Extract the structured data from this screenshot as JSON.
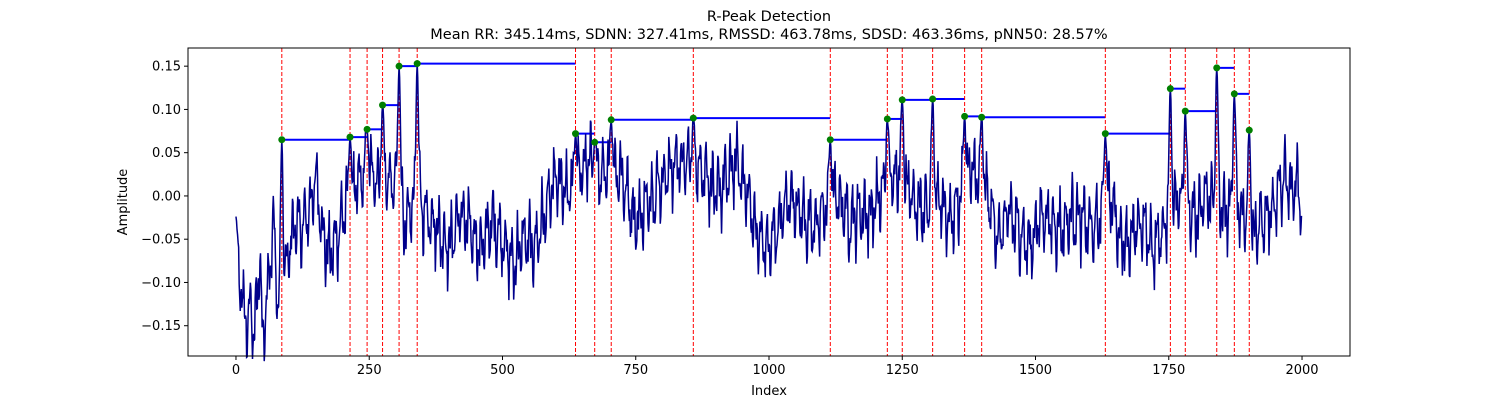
{
  "chart_data": {
    "type": "line",
    "title": "R-Peak Detection",
    "subtitle": "Mean RR: 345.14ms, SDNN: 327.41ms, RMSSD: 463.78ms, SDSD: 463.36ms, pNN50: 28.57%",
    "xlabel": "Index",
    "ylabel": "Amplitude",
    "xlim": [
      -90,
      2090
    ],
    "ylim": [
      -0.185,
      0.171
    ],
    "x_ticks": [
      0,
      250,
      500,
      750,
      1000,
      1250,
      1500,
      1750,
      2000
    ],
    "y_ticks": [
      -0.15,
      -0.1,
      -0.05,
      0.0,
      0.05,
      0.1,
      0.15
    ],
    "grid": false,
    "colors": {
      "signal": "#00008b",
      "peak_line": "#ff0000",
      "peak_marker": "#008000",
      "interval": "#0000ff"
    },
    "signal": {
      "n_points": 2000,
      "anchors": [
        [
          0,
          -0.04
        ],
        [
          5,
          -0.09
        ],
        [
          12,
          -0.12
        ],
        [
          20,
          -0.15
        ],
        [
          28,
          -0.13
        ],
        [
          35,
          -0.16
        ],
        [
          45,
          -0.07
        ],
        [
          50,
          -0.17
        ],
        [
          60,
          -0.1
        ],
        [
          70,
          -0.03
        ],
        [
          78,
          -0.12
        ],
        [
          85,
          -0.16
        ],
        [
          95,
          -0.08
        ],
        [
          110,
          -0.03
        ],
        [
          120,
          -0.04
        ],
        [
          130,
          -0.03
        ],
        [
          140,
          -0.01
        ],
        [
          150,
          0.02
        ],
        [
          165,
          -0.05
        ],
        [
          175,
          -0.07
        ],
        [
          190,
          -0.05
        ],
        [
          200,
          -0.02
        ],
        [
          245,
          0.03
        ],
        [
          260,
          0.02
        ],
        [
          280,
          0.02
        ],
        [
          300,
          0.01
        ],
        [
          320,
          -0.04
        ],
        [
          330,
          -0.01
        ],
        [
          360,
          -0.02
        ],
        [
          380,
          -0.04
        ],
        [
          400,
          -0.06
        ],
        [
          420,
          -0.02
        ],
        [
          440,
          -0.04
        ],
        [
          460,
          -0.06
        ],
        [
          480,
          -0.03
        ],
        [
          500,
          -0.05
        ],
        [
          520,
          -0.08
        ],
        [
          540,
          -0.05
        ],
        [
          560,
          -0.06
        ],
        [
          600,
          0.02
        ],
        [
          620,
          0.0
        ],
        [
          660,
          0.04
        ],
        [
          690,
          0.02
        ],
        [
          720,
          0.03
        ],
        [
          750,
          -0.03
        ],
        [
          780,
          0.0
        ],
        [
          800,
          0.02
        ],
        [
          830,
          0.04
        ],
        [
          880,
          0.03
        ],
        [
          900,
          0.0
        ],
        [
          920,
          0.02
        ],
        [
          940,
          0.04
        ],
        [
          960,
          0.0
        ],
        [
          980,
          -0.05
        ],
        [
          1000,
          -0.06
        ],
        [
          1020,
          -0.03
        ],
        [
          1040,
          0.0
        ],
        [
          1060,
          -0.02
        ],
        [
          1080,
          -0.04
        ],
        [
          1100,
          -0.02
        ],
        [
          1130,
          0.0
        ],
        [
          1150,
          -0.03
        ],
        [
          1170,
          -0.02
        ],
        [
          1190,
          -0.02
        ],
        [
          1210,
          0.0
        ],
        [
          1240,
          0.03
        ],
        [
          1270,
          0.0
        ],
        [
          1290,
          -0.02
        ],
        [
          1320,
          0.0
        ],
        [
          1340,
          -0.03
        ],
        [
          1380,
          0.03
        ],
        [
          1410,
          0.0
        ],
        [
          1430,
          -0.05
        ],
        [
          1450,
          -0.02
        ],
        [
          1470,
          -0.04
        ],
        [
          1490,
          -0.06
        ],
        [
          1510,
          -0.02
        ],
        [
          1530,
          -0.03
        ],
        [
          1550,
          -0.04
        ],
        [
          1570,
          -0.02
        ],
        [
          1590,
          -0.03
        ],
        [
          1610,
          -0.04
        ],
        [
          1640,
          0.0
        ],
        [
          1660,
          -0.05
        ],
        [
          1680,
          -0.05
        ],
        [
          1700,
          -0.03
        ],
        [
          1720,
          -0.06
        ],
        [
          1740,
          -0.04
        ],
        [
          1770,
          0.0
        ],
        [
          1800,
          -0.03
        ],
        [
          1820,
          0.0
        ],
        [
          1855,
          -0.02
        ],
        [
          1880,
          -0.01
        ],
        [
          1910,
          -0.05
        ],
        [
          1920,
          -0.03
        ],
        [
          1940,
          -0.02
        ],
        [
          1960,
          0.01
        ],
        [
          1970,
          0.02
        ],
        [
          1980,
          0.0
        ],
        [
          1990,
          0.02
        ],
        [
          1999,
          -0.01
        ]
      ]
    },
    "r_peaks": [
      {
        "x": 86,
        "y": 0.065
      },
      {
        "x": 214,
        "y": 0.068
      },
      {
        "x": 246,
        "y": 0.077
      },
      {
        "x": 275,
        "y": 0.105
      },
      {
        "x": 306,
        "y": 0.15
      },
      {
        "x": 340,
        "y": 0.153
      },
      {
        "x": 637,
        "y": 0.072
      },
      {
        "x": 673,
        "y": 0.062
      },
      {
        "x": 704,
        "y": 0.088
      },
      {
        "x": 858,
        "y": 0.09
      },
      {
        "x": 1115,
        "y": 0.065
      },
      {
        "x": 1222,
        "y": 0.089
      },
      {
        "x": 1250,
        "y": 0.111
      },
      {
        "x": 1307,
        "y": 0.112
      },
      {
        "x": 1367,
        "y": 0.092
      },
      {
        "x": 1399,
        "y": 0.091
      },
      {
        "x": 1631,
        "y": 0.072
      },
      {
        "x": 1753,
        "y": 0.124
      },
      {
        "x": 1781,
        "y": 0.098
      },
      {
        "x": 1840,
        "y": 0.148
      },
      {
        "x": 1873,
        "y": 0.118
      },
      {
        "x": 1901,
        "y": 0.076
      }
    ]
  }
}
